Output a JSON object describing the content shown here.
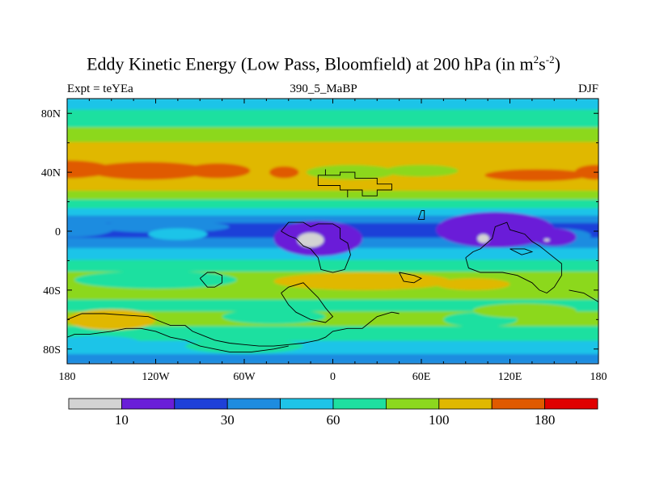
{
  "header": {
    "title_main": "Eddy Kinetic Energy (Low Pass, Bloomfield) at 200 hPa (in m",
    "title_sup1": "2",
    "title_mid": "s",
    "title_sup2": "-2",
    "title_end": ")",
    "left_label": "Expt = teYEa",
    "center_label": "390_5_MaBP",
    "right_label": "DJF"
  },
  "chart_data": {
    "type": "heatmap",
    "title": "Eddy Kinetic Energy (Low Pass, Bloomfield) at 200 hPa (in m^2 s^-2)",
    "subtitle": "390_5_MaBP",
    "xlabel": "",
    "ylabel": "",
    "xlim": [
      -180,
      180
    ],
    "ylim": [
      -90,
      90
    ],
    "x_ticks": [
      {
        "value": -180,
        "label": "180"
      },
      {
        "value": -120,
        "label": "120W"
      },
      {
        "value": -60,
        "label": "60W"
      },
      {
        "value": 0,
        "label": "0"
      },
      {
        "value": 60,
        "label": "60E"
      },
      {
        "value": 120,
        "label": "120E"
      },
      {
        "value": 180,
        "label": "180"
      }
    ],
    "y_ticks": [
      {
        "value": 80,
        "label": "80N"
      },
      {
        "value": 40,
        "label": "40N"
      },
      {
        "value": 0,
        "label": "0"
      },
      {
        "value": -40,
        "label": "40S"
      },
      {
        "value": -80,
        "label": "80S"
      }
    ],
    "colorbar": {
      "colors": [
        "#d3d3d3",
        "#6a1ed8",
        "#1e40d8",
        "#1e8ce0",
        "#1ec4e8",
        "#1ee0a0",
        "#8cd81e",
        "#e0b800",
        "#e05a00",
        "#e00000"
      ],
      "labels": [
        {
          "after_bin": 1,
          "text": "10"
        },
        {
          "after_bin": 3,
          "text": "30"
        },
        {
          "after_bin": 5,
          "text": "60"
        },
        {
          "after_bin": 7,
          "text": "100"
        },
        {
          "after_bin": 9,
          "text": "180"
        }
      ]
    },
    "field_bands": [
      {
        "lat": [
          82,
          90
        ],
        "color": "#1ec4e8"
      },
      {
        "lat": [
          70,
          82
        ],
        "color": "#1ee0a0"
      },
      {
        "lat": [
          60,
          70
        ],
        "color": "#8cd81e"
      },
      {
        "lat": [
          48,
          60
        ],
        "color": "#e0b800"
      },
      {
        "lat": [
          27,
          48
        ],
        "color": "#e0b800"
      },
      {
        "lat": [
          21,
          27
        ],
        "color": "#8cd81e"
      },
      {
        "lat": [
          15,
          21
        ],
        "color": "#1ee0a0"
      },
      {
        "lat": [
          10,
          15
        ],
        "color": "#1ec4e8"
      },
      {
        "lat": [
          5,
          10
        ],
        "color": "#1e8ce0"
      },
      {
        "lat": [
          -5,
          5
        ],
        "color": "#1e40d8"
      },
      {
        "lat": [
          -12,
          -5
        ],
        "color": "#1e8ce0"
      },
      {
        "lat": [
          -20,
          -12
        ],
        "color": "#1ec4e8"
      },
      {
        "lat": [
          -28,
          -20
        ],
        "color": "#1ee0a0"
      },
      {
        "lat": [
          -40,
          -28
        ],
        "color": "#8cd81e"
      },
      {
        "lat": [
          -47,
          -40
        ],
        "color": "#8cd81e"
      },
      {
        "lat": [
          -55,
          -47
        ],
        "color": "#1ee0a0"
      },
      {
        "lat": [
          -65,
          -55
        ],
        "color": "#8cd81e"
      },
      {
        "lat": [
          -75,
          -65
        ],
        "color": "#1ee0a0"
      },
      {
        "lat": [
          -84,
          -75
        ],
        "color": "#1ec4e8"
      },
      {
        "lat": [
          -90,
          -84
        ],
        "color": "#1e8ce0"
      }
    ],
    "field_blobs": [
      {
        "lon": -180,
        "lat": 42,
        "rlon": 30,
        "rlat": 6,
        "color": "#e05a00"
      },
      {
        "lon": -125,
        "lat": 41,
        "rlon": 40,
        "rlat": 6,
        "color": "#e05a00"
      },
      {
        "lon": -78,
        "lat": 41,
        "rlon": 22,
        "rlat": 5,
        "color": "#e05a00"
      },
      {
        "lon": -33,
        "lat": 40,
        "rlon": 10,
        "rlat": 4,
        "color": "#e05a00"
      },
      {
        "lon": 138,
        "lat": 38,
        "rlon": 35,
        "rlat": 4,
        "color": "#e05a00"
      },
      {
        "lon": 178,
        "lat": 40,
        "rlon": 14,
        "rlat": 5,
        "color": "#e05a00"
      },
      {
        "lon": 12,
        "lat": 40,
        "rlon": 30,
        "rlat": 5,
        "color": "#8cd81e"
      },
      {
        "lon": 60,
        "lat": 41,
        "rlon": 25,
        "rlat": 4,
        "color": "#8cd81e"
      },
      {
        "lon": -178,
        "lat": 2,
        "rlon": 30,
        "rlat": 6,
        "color": "#1e8ce0"
      },
      {
        "lon": -115,
        "lat": 3,
        "rlon": 45,
        "rlat": 4,
        "color": "#1e8ce0"
      },
      {
        "lon": 150,
        "lat": -3,
        "rlon": 25,
        "rlat": 5,
        "color": "#1e8ce0"
      },
      {
        "lon": -105,
        "lat": -2,
        "rlon": 20,
        "rlat": 4,
        "color": "#1ec4e8"
      },
      {
        "lon": -120,
        "lat": -33,
        "rlon": 55,
        "rlat": 6,
        "color": "#1ee0a0"
      },
      {
        "lon": 20,
        "lat": -34,
        "rlon": 60,
        "rlat": 6,
        "color": "#e0b800"
      },
      {
        "lon": 95,
        "lat": -36,
        "rlon": 25,
        "rlat": 4,
        "color": "#e0b800"
      },
      {
        "lon": -150,
        "lat": -60,
        "rlon": 30,
        "rlat": 7,
        "color": "#e0b800"
      },
      {
        "lon": -40,
        "lat": -58,
        "rlon": 35,
        "rlat": 5,
        "color": "#1ee0a0"
      },
      {
        "lon": 100,
        "lat": -60,
        "rlon": 25,
        "rlat": 5,
        "color": "#1ee0a0"
      },
      {
        "lon": 130,
        "lat": -54,
        "rlon": 35,
        "rlat": 5,
        "color": "#8cd81e"
      },
      {
        "lon": -160,
        "lat": -76,
        "rlon": 30,
        "rlat": 5,
        "color": "#1ec4e8"
      },
      {
        "lon": -60,
        "lat": -78,
        "rlon": 40,
        "rlat": 5,
        "color": "#1ee0a0"
      },
      {
        "lon": -10,
        "lat": -5,
        "rlon": 30,
        "rlat": 12,
        "color": "#6a1ed8"
      },
      {
        "lon": 110,
        "lat": 1,
        "rlon": 40,
        "rlat": 12,
        "color": "#6a1ed8"
      },
      {
        "lon": 150,
        "lat": -4,
        "rlon": 15,
        "rlat": 6,
        "color": "#6a1ed8"
      },
      {
        "lon": -15,
        "lat": -6,
        "rlon": 9,
        "rlat": 5,
        "color": "#d3d3d3"
      },
      {
        "lon": 102,
        "lat": -5,
        "rlon": 4,
        "rlat": 3,
        "color": "#d3d3d3"
      },
      {
        "lon": 145,
        "lat": -6,
        "rlon": 2,
        "rlat": 1,
        "color": "#d3d3d3"
      }
    ],
    "outlines": [
      [
        [
          -5,
          42
        ],
        [
          -5,
          38
        ],
        [
          5,
          38
        ],
        [
          5,
          40
        ],
        [
          15,
          40
        ],
        [
          15,
          36
        ],
        [
          30,
          36
        ],
        [
          30,
          32
        ],
        [
          40,
          32
        ],
        [
          40,
          28
        ],
        [
          30,
          28
        ],
        [
          30,
          24
        ],
        [
          20,
          24
        ],
        [
          20,
          28
        ],
        [
          5,
          28
        ],
        [
          5,
          31
        ],
        [
          -10,
          31
        ],
        [
          -10,
          38
        ],
        [
          -5,
          38
        ],
        [
          -5,
          42
        ]
      ],
      [
        [
          10,
          23
        ],
        [
          10,
          28
        ],
        [
          15,
          28
        ]
      ],
      [
        [
          60,
          14
        ],
        [
          58,
          8
        ],
        [
          62,
          8
        ],
        [
          62,
          14
        ],
        [
          60,
          14
        ]
      ],
      [
        [
          -35,
          0
        ],
        [
          -30,
          6
        ],
        [
          -20,
          6
        ],
        [
          -15,
          3
        ],
        [
          -10,
          5
        ],
        [
          0,
          5
        ],
        [
          5,
          2
        ],
        [
          5,
          -5
        ],
        [
          10,
          -8
        ],
        [
          12,
          -16
        ],
        [
          8,
          -26
        ],
        [
          0,
          -28
        ],
        [
          -8,
          -26
        ],
        [
          -10,
          -18
        ],
        [
          -15,
          -12
        ],
        [
          -20,
          -10
        ],
        [
          -25,
          -5
        ],
        [
          -30,
          -3
        ],
        [
          -35,
          0
        ]
      ],
      [
        [
          90,
          -18
        ],
        [
          95,
          -14
        ],
        [
          100,
          -12
        ],
        [
          108,
          -5
        ],
        [
          110,
          3
        ],
        [
          118,
          6
        ],
        [
          120,
          1
        ],
        [
          130,
          -2
        ],
        [
          135,
          -7
        ],
        [
          140,
          -10
        ],
        [
          150,
          -18
        ],
        [
          155,
          -22
        ],
        [
          155,
          -30
        ],
        [
          150,
          -38
        ],
        [
          145,
          -42
        ],
        [
          140,
          -40
        ],
        [
          135,
          -35
        ],
        [
          125,
          -30
        ],
        [
          115,
          -28
        ],
        [
          100,
          -28
        ],
        [
          92,
          -25
        ],
        [
          90,
          -18
        ]
      ],
      [
        [
          120,
          -12
        ],
        [
          130,
          -12
        ],
        [
          135,
          -14
        ],
        [
          128,
          -16
        ],
        [
          120,
          -12
        ]
      ],
      [
        [
          -90,
          -32
        ],
        [
          -85,
          -28
        ],
        [
          -80,
          -28
        ],
        [
          -75,
          -30
        ],
        [
          -75,
          -35
        ],
        [
          -80,
          -38
        ],
        [
          -85,
          -38
        ],
        [
          -90,
          -32
        ]
      ],
      [
        [
          -180,
          -60
        ],
        [
          -170,
          -56
        ],
        [
          -155,
          -56
        ],
        [
          -140,
          -57
        ],
        [
          -125,
          -58
        ],
        [
          -115,
          -62
        ],
        [
          -110,
          -64
        ],
        [
          -100,
          -64
        ],
        [
          -95,
          -68
        ],
        [
          -90,
          -70
        ],
        [
          -85,
          -72
        ],
        [
          -80,
          -74
        ],
        [
          -70,
          -76
        ],
        [
          -60,
          -77
        ],
        [
          -50,
          -78
        ],
        [
          -40,
          -78
        ],
        [
          -30,
          -77
        ],
        [
          -20,
          -76
        ],
        [
          -10,
          -74
        ],
        [
          -5,
          -72
        ],
        [
          0,
          -68
        ],
        [
          10,
          -66
        ],
        [
          20,
          -66
        ],
        [
          25,
          -62
        ],
        [
          30,
          -58
        ],
        [
          40,
          -55
        ],
        [
          45,
          -56
        ]
      ],
      [
        [
          -180,
          -72
        ],
        [
          -175,
          -70
        ],
        [
          -165,
          -70
        ],
        [
          -150,
          -68
        ],
        [
          -140,
          -66
        ],
        [
          -130,
          -66
        ],
        [
          -120,
          -68
        ],
        [
          -110,
          -72
        ],
        [
          -100,
          -74
        ],
        [
          -90,
          -78
        ],
        [
          -80,
          -80
        ],
        [
          -70,
          -82
        ],
        [
          -55,
          -82
        ],
        [
          -40,
          -80
        ],
        [
          -30,
          -78
        ]
      ],
      [
        [
          -35,
          -42
        ],
        [
          -30,
          -38
        ],
        [
          -20,
          -35
        ],
        [
          -15,
          -40
        ],
        [
          -10,
          -45
        ],
        [
          -5,
          -52
        ],
        [
          0,
          -58
        ],
        [
          -5,
          -62
        ],
        [
          -15,
          -60
        ],
        [
          -25,
          -55
        ],
        [
          -30,
          -50
        ],
        [
          -35,
          -42
        ]
      ],
      [
        [
          45,
          -28
        ],
        [
          55,
          -30
        ],
        [
          60,
          -32
        ],
        [
          55,
          -35
        ],
        [
          48,
          -34
        ],
        [
          45,
          -28
        ]
      ],
      [
        [
          160,
          -40
        ],
        [
          170,
          -42
        ],
        [
          175,
          -45
        ],
        [
          180,
          -48
        ]
      ]
    ]
  }
}
